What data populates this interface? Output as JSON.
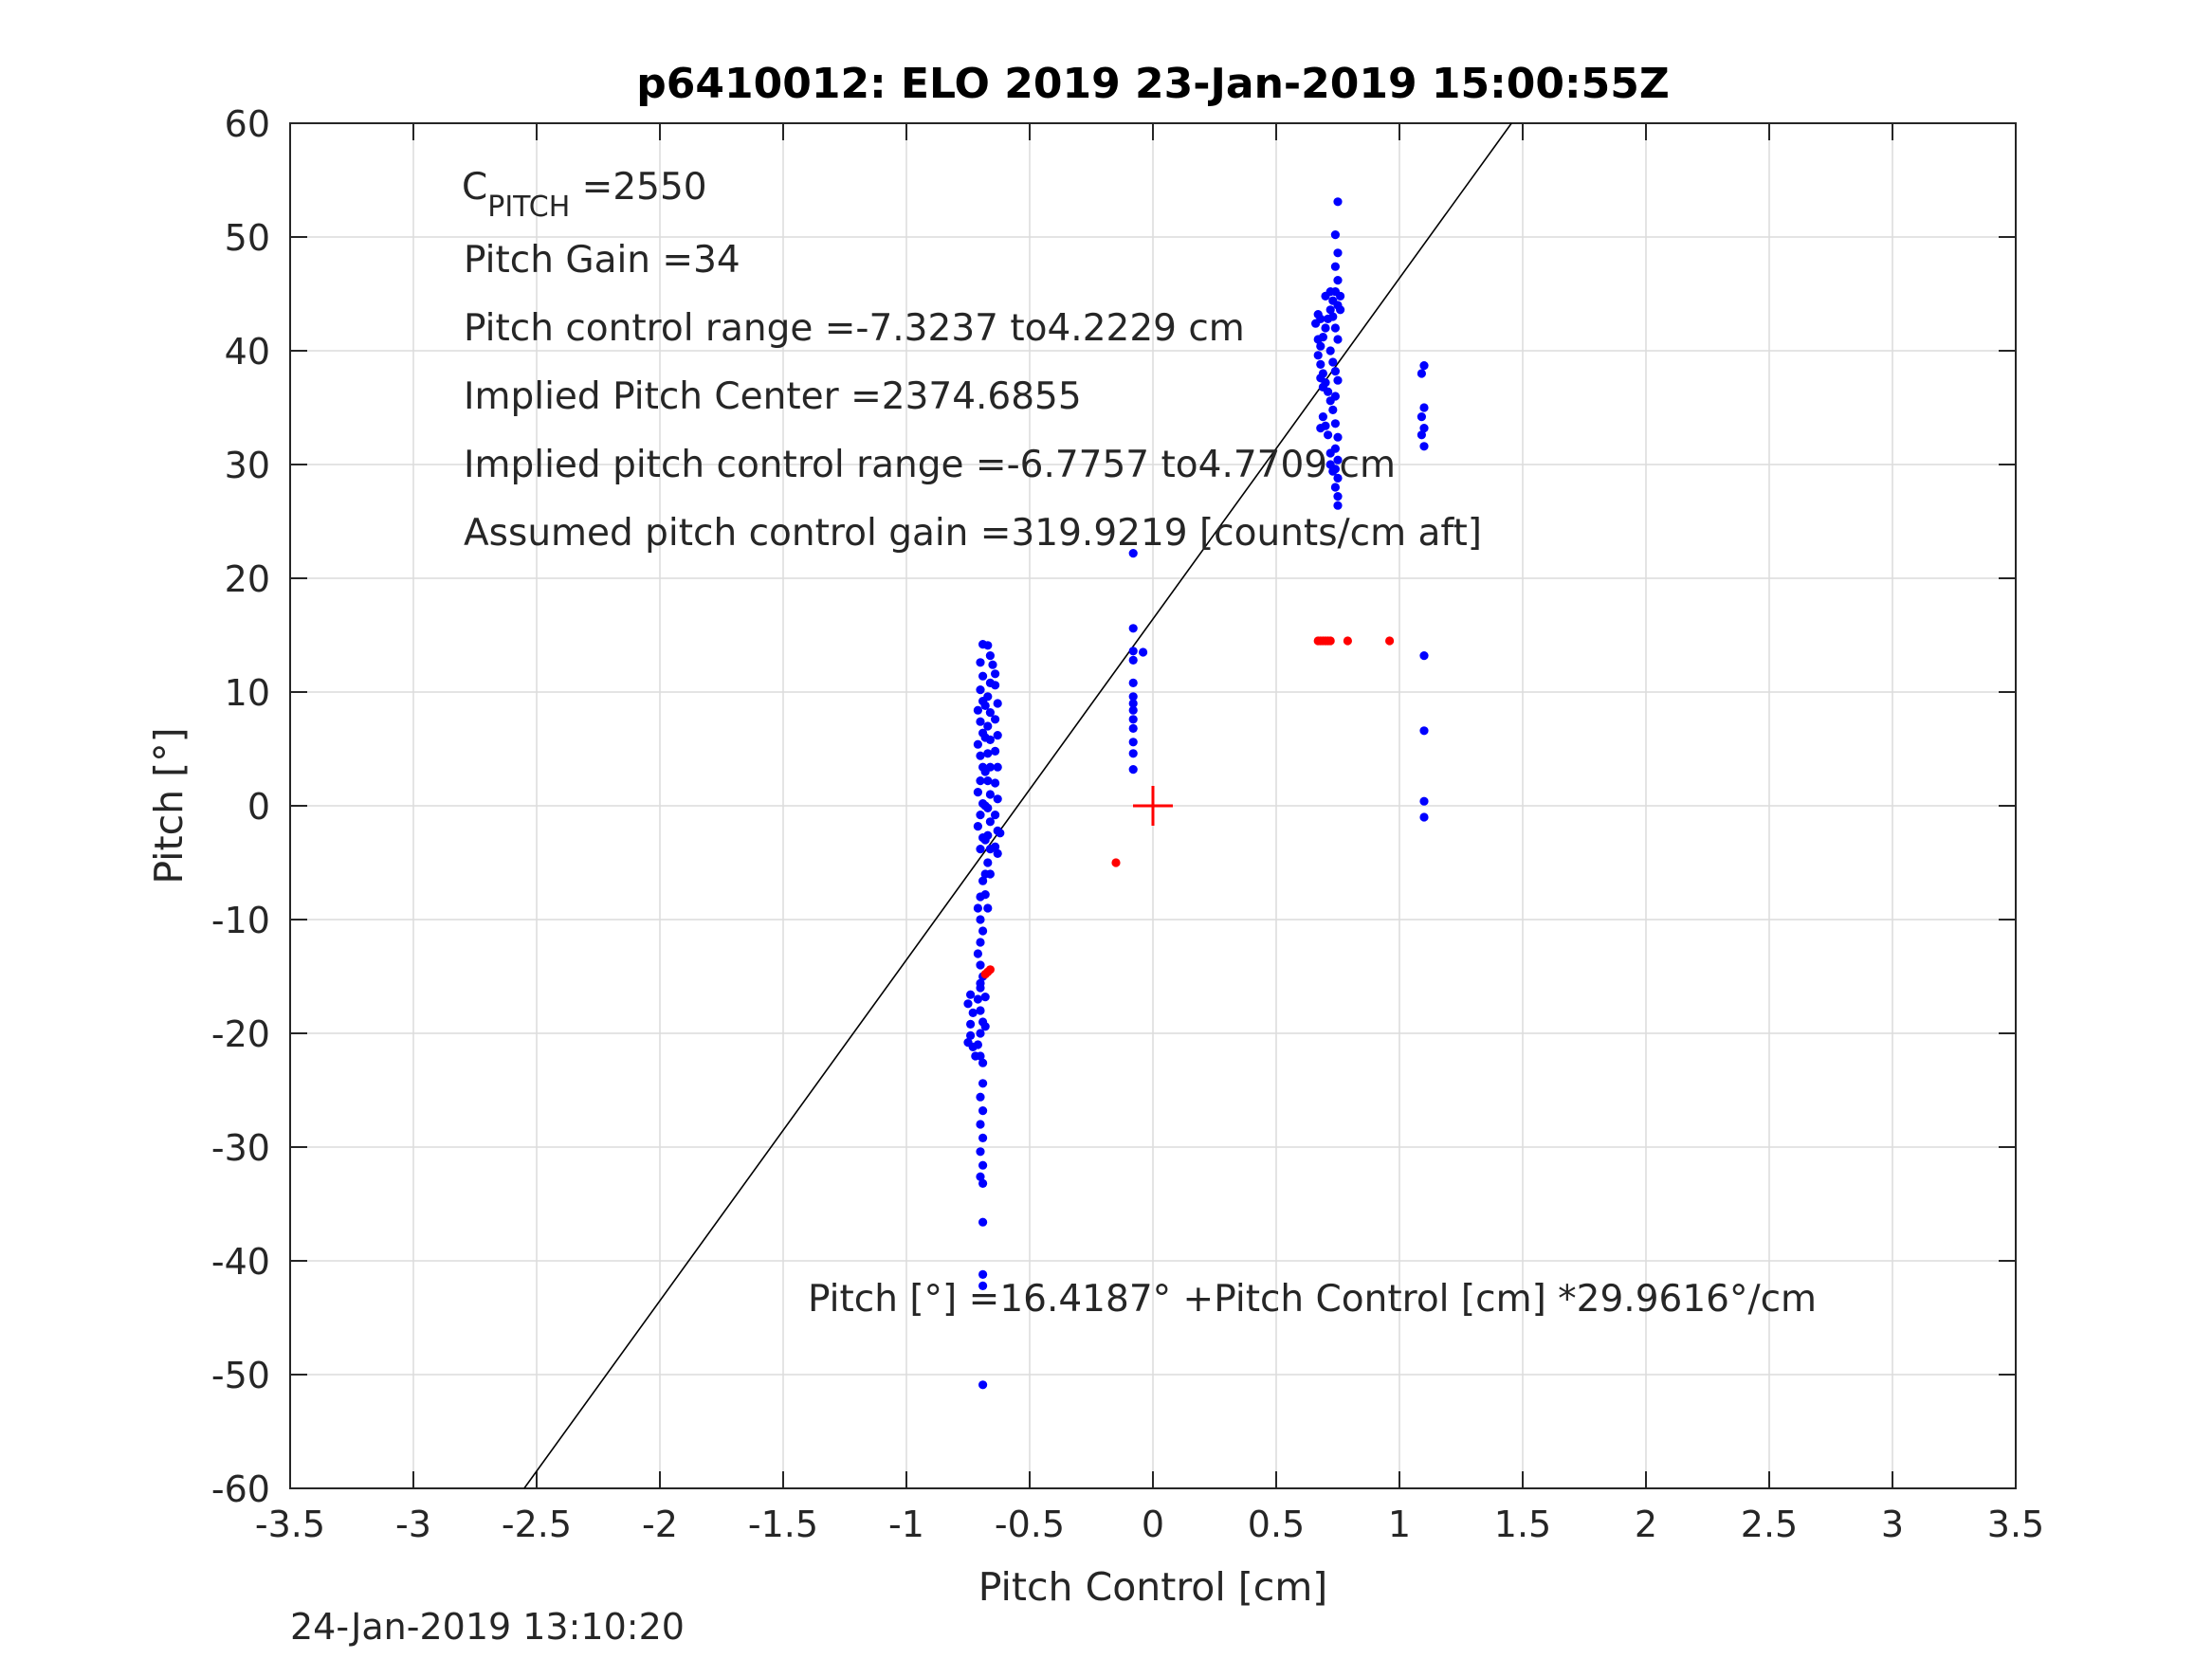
{
  "chart_data": {
    "type": "scatter",
    "title": "p6410012: ELO 2019 23-Jan-2019 15:00:55Z",
    "xlabel": "Pitch Control [cm]",
    "ylabel": "Pitch [°]",
    "xlim": [
      -3.5,
      3.5
    ],
    "ylim": [
      -60,
      60
    ],
    "grid": true,
    "x_ticks": [
      -3.5,
      -3,
      -2.5,
      -2,
      -1.5,
      -1,
      -0.5,
      0,
      0.5,
      1,
      1.5,
      2,
      2.5,
      3,
      3.5
    ],
    "x_tick_labels": [
      "-3.5",
      "-3",
      "-2.5",
      "-2",
      "-1.5",
      "-1",
      "-0.5",
      "0",
      "0.5",
      "1",
      "1.5",
      "2",
      "2.5",
      "3",
      "3.5"
    ],
    "y_ticks": [
      -60,
      -50,
      -40,
      -30,
      -20,
      -10,
      0,
      10,
      20,
      30,
      40,
      50,
      60
    ],
    "y_tick_labels": [
      "-60",
      "-50",
      "-40",
      "-30",
      "-20",
      "-10",
      "0",
      "10",
      "20",
      "30",
      "40",
      "50",
      "60"
    ],
    "fit_line": {
      "intercept": 16.4187,
      "slope": 29.9616,
      "color": "#000000"
    },
    "center_marker": {
      "x": 0,
      "y": 0,
      "color": "#ff0000"
    },
    "series": [
      {
        "color": "#0000ff",
        "points": [
          [
            -0.69,
            14.2
          ],
          [
            -0.67,
            14.1
          ],
          [
            -0.66,
            13.2
          ],
          [
            -0.65,
            12.4
          ],
          [
            -0.64,
            11.6
          ],
          [
            -0.7,
            12.6
          ],
          [
            -0.69,
            11.4
          ],
          [
            -0.7,
            10.2
          ],
          [
            -0.69,
            9.2
          ],
          [
            -0.71,
            8.4
          ],
          [
            -0.7,
            7.4
          ],
          [
            -0.69,
            6.4
          ],
          [
            -0.71,
            5.4
          ],
          [
            -0.7,
            4.4
          ],
          [
            -0.69,
            3.4
          ],
          [
            -0.7,
            2.2
          ],
          [
            -0.71,
            1.2
          ],
          [
            -0.69,
            0.2
          ],
          [
            -0.7,
            -0.8
          ],
          [
            -0.71,
            -1.8
          ],
          [
            -0.69,
            -2.8
          ],
          [
            -0.7,
            -3.8
          ],
          [
            -0.66,
            10.8
          ],
          [
            -0.67,
            9.6
          ],
          [
            -0.66,
            8.2
          ],
          [
            -0.67,
            7.0
          ],
          [
            -0.66,
            5.8
          ],
          [
            -0.67,
            4.6
          ],
          [
            -0.66,
            3.4
          ],
          [
            -0.67,
            2.2
          ],
          [
            -0.66,
            1.0
          ],
          [
            -0.67,
            -0.2
          ],
          [
            -0.66,
            -1.4
          ],
          [
            -0.67,
            -2.6
          ],
          [
            -0.66,
            -3.8
          ],
          [
            -0.67,
            -5.0
          ],
          [
            -0.66,
            -6.0
          ],
          [
            -0.64,
            10.6
          ],
          [
            -0.63,
            9.0
          ],
          [
            -0.64,
            7.6
          ],
          [
            -0.63,
            6.2
          ],
          [
            -0.64,
            4.8
          ],
          [
            -0.63,
            3.4
          ],
          [
            -0.64,
            2.0
          ],
          [
            -0.63,
            0.6
          ],
          [
            -0.64,
            -0.8
          ],
          [
            -0.63,
            -2.2
          ],
          [
            -0.64,
            -3.6
          ],
          [
            -0.63,
            -4.2
          ],
          [
            -0.62,
            -2.4
          ],
          [
            -0.68,
            8.8
          ],
          [
            -0.68,
            6.0
          ],
          [
            -0.68,
            3.0
          ],
          [
            -0.68,
            0.0
          ],
          [
            -0.68,
            -3.0
          ],
          [
            -0.68,
            -6.0
          ],
          [
            -0.68,
            -7.8
          ],
          [
            -0.67,
            -9.0
          ],
          [
            -0.69,
            -6.6
          ],
          [
            -0.7,
            -8.0
          ],
          [
            -0.71,
            -9.0
          ],
          [
            -0.7,
            -10.0
          ],
          [
            -0.69,
            -11.0
          ],
          [
            -0.7,
            -12.0
          ],
          [
            -0.71,
            -13.0
          ],
          [
            -0.7,
            -14.0
          ],
          [
            -0.69,
            -15.0
          ],
          [
            -0.7,
            -16.0
          ],
          [
            -0.71,
            -17.0
          ],
          [
            -0.7,
            -18.0
          ],
          [
            -0.69,
            -19.0
          ],
          [
            -0.7,
            -20.0
          ],
          [
            -0.71,
            -21.0
          ],
          [
            -0.7,
            -22.0
          ],
          [
            -0.69,
            -22.6
          ],
          [
            -0.7,
            -15.6
          ],
          [
            -0.68,
            -16.8
          ],
          [
            -0.68,
            -19.4
          ],
          [
            -0.74,
            -16.6
          ],
          [
            -0.75,
            -17.4
          ],
          [
            -0.74,
            -19.2
          ],
          [
            -0.75,
            -20.8
          ],
          [
            -0.73,
            -21.2
          ],
          [
            -0.74,
            -20.2
          ],
          [
            -0.72,
            -22.0
          ],
          [
            -0.73,
            -18.2
          ],
          [
            -0.69,
            -24.4
          ],
          [
            -0.7,
            -25.6
          ],
          [
            -0.69,
            -26.8
          ],
          [
            -0.7,
            -28.0
          ],
          [
            -0.69,
            -29.2
          ],
          [
            -0.7,
            -30.4
          ],
          [
            -0.69,
            -31.6
          ],
          [
            -0.7,
            -32.6
          ],
          [
            -0.69,
            -33.2
          ],
          [
            -0.69,
            -36.6
          ],
          [
            -0.69,
            -41.2
          ],
          [
            -0.69,
            -42.2
          ],
          [
            -0.69,
            -50.9
          ],
          [
            -0.08,
            22.2
          ],
          [
            -0.08,
            15.6
          ],
          [
            -0.08,
            13.6
          ],
          [
            -0.08,
            12.8
          ],
          [
            -0.04,
            13.5
          ],
          [
            -0.08,
            10.8
          ],
          [
            -0.08,
            9.6
          ],
          [
            -0.08,
            8.4
          ],
          [
            -0.08,
            7.6
          ],
          [
            -0.08,
            6.8
          ],
          [
            -0.08,
            5.6
          ],
          [
            -0.08,
            4.6
          ],
          [
            -0.08,
            3.2
          ],
          [
            -0.08,
            9.0
          ],
          [
            0.75,
            53.1
          ],
          [
            0.74,
            50.2
          ],
          [
            0.75,
            48.6
          ],
          [
            0.74,
            47.4
          ],
          [
            0.75,
            46.2
          ],
          [
            0.74,
            45.2
          ],
          [
            0.73,
            44.4
          ],
          [
            0.72,
            43.6
          ],
          [
            0.71,
            42.8
          ],
          [
            0.7,
            42.0
          ],
          [
            0.69,
            41.2
          ],
          [
            0.68,
            40.4
          ],
          [
            0.67,
            39.6
          ],
          [
            0.68,
            38.8
          ],
          [
            0.69,
            38.0
          ],
          [
            0.7,
            37.2
          ],
          [
            0.71,
            36.4
          ],
          [
            0.72,
            35.6
          ],
          [
            0.7,
            44.8
          ],
          [
            0.72,
            45.2
          ],
          [
            0.73,
            43.0
          ],
          [
            0.74,
            42.0
          ],
          [
            0.75,
            41.0
          ],
          [
            0.76,
            43.6
          ],
          [
            0.76,
            44.8
          ],
          [
            0.75,
            44.0
          ],
          [
            0.72,
            40.0
          ],
          [
            0.73,
            39.0
          ],
          [
            0.74,
            38.2
          ],
          [
            0.75,
            37.4
          ],
          [
            0.74,
            36.0
          ],
          [
            0.73,
            34.8
          ],
          [
            0.74,
            33.6
          ],
          [
            0.75,
            32.4
          ],
          [
            0.74,
            31.4
          ],
          [
            0.75,
            30.4
          ],
          [
            0.74,
            29.6
          ],
          [
            0.75,
            28.8
          ],
          [
            0.74,
            28.0
          ],
          [
            0.75,
            27.2
          ],
          [
            0.75,
            26.4
          ],
          [
            0.72,
            31.0
          ],
          [
            0.71,
            32.6
          ],
          [
            0.7,
            33.4
          ],
          [
            0.69,
            34.2
          ],
          [
            0.68,
            33.2
          ],
          [
            0.72,
            30.0
          ],
          [
            0.73,
            29.4
          ],
          [
            0.69,
            36.8
          ],
          [
            0.68,
            37.6
          ],
          [
            0.67,
            41.0
          ],
          [
            0.66,
            42.4
          ],
          [
            0.67,
            43.2
          ],
          [
            0.68,
            42.8
          ],
          [
            1.1,
            38.7
          ],
          [
            1.09,
            38.0
          ],
          [
            1.1,
            35.0
          ],
          [
            1.09,
            34.2
          ],
          [
            1.1,
            33.2
          ],
          [
            1.09,
            32.6
          ],
          [
            1.1,
            31.6
          ],
          [
            1.1,
            13.2
          ],
          [
            1.1,
            6.6
          ],
          [
            1.1,
            0.4
          ],
          [
            1.1,
            -1.0
          ]
        ]
      },
      {
        "color": "#ff0000",
        "points": [
          [
            0.67,
            14.5
          ],
          [
            0.68,
            14.5
          ],
          [
            0.69,
            14.5
          ],
          [
            0.7,
            14.5
          ],
          [
            0.71,
            14.5
          ],
          [
            0.72,
            14.5
          ],
          [
            0.79,
            14.5
          ],
          [
            0.96,
            14.5
          ],
          [
            -0.15,
            -5.0
          ],
          [
            -0.67,
            -14.6
          ],
          [
            -0.68,
            -14.8
          ],
          [
            -0.66,
            -14.4
          ]
        ]
      }
    ],
    "annotations": {
      "c_pitch_main": "C",
      "c_pitch_sub": "PITCH",
      "c_pitch_value": " =2550",
      "pitch_gain": "Pitch Gain =34",
      "control_range": "Pitch control range =-7.3237 to4.2229 cm",
      "pitch_center": "Implied Pitch Center =2374.6855",
      "implied_range": "Implied pitch control range =-6.7757 to4.7709 cm",
      "control_gain": "Assumed pitch control gain =319.9219 [counts/cm aft]",
      "equation": "Pitch [°] =16.4187° +Pitch Control [cm] *29.9616°/cm"
    }
  },
  "footer": {
    "timestamp": "24-Jan-2019 13:10:20"
  }
}
